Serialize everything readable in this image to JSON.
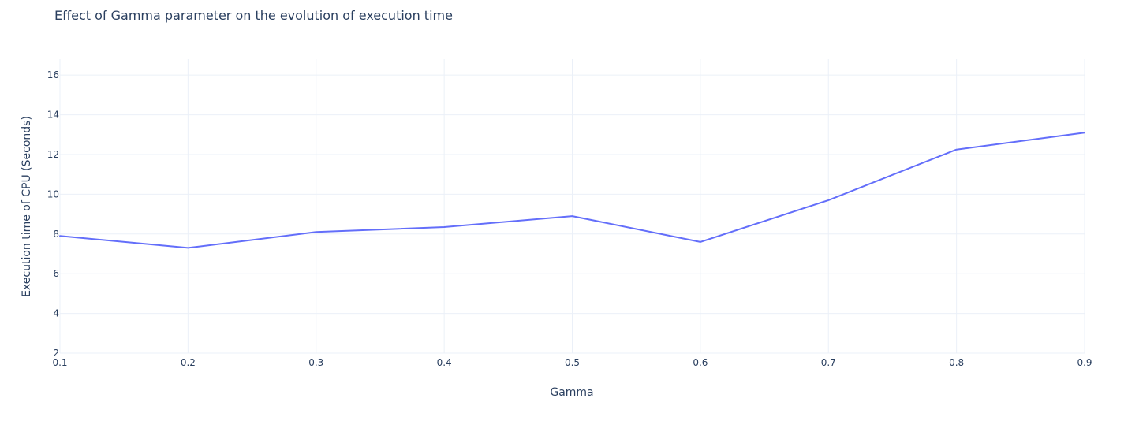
{
  "chart_data": {
    "type": "line",
    "title": "Effect of Gamma parameter on the evolution of execution time",
    "xlabel": "Gamma",
    "ylabel": "Execution time of CPU (Seconds)",
    "x": [
      0.1,
      0.2,
      0.3,
      0.4,
      0.5,
      0.6,
      0.7,
      0.8,
      0.9
    ],
    "series": [
      {
        "values": [
          7.9,
          7.3,
          8.1,
          8.35,
          8.9,
          7.6,
          9.7,
          12.25,
          13.1
        ]
      }
    ],
    "xlim": [
      0.1,
      0.9
    ],
    "ylim": [
      2,
      16.8
    ],
    "x_ticks": [
      0.1,
      0.2,
      0.3,
      0.4,
      0.5,
      0.6,
      0.7,
      0.8,
      0.9
    ],
    "x_tick_labels": [
      "0.1",
      "0.2",
      "0.3",
      "0.4",
      "0.5",
      "0.6",
      "0.7",
      "0.8",
      "0.9"
    ],
    "y_ticks": [
      2,
      4,
      6,
      8,
      10,
      12,
      14,
      16
    ],
    "y_tick_labels": [
      "2",
      "4",
      "6",
      "8",
      "10",
      "12",
      "14",
      "16"
    ],
    "grid": true,
    "legend": "none",
    "line_color": "#636efa",
    "grid_color": "#ebf0f8",
    "text_color": "#2a3f5f"
  }
}
